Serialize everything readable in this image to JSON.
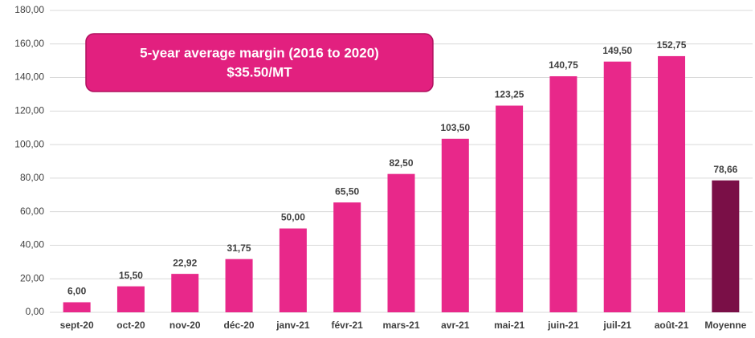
{
  "chart_data": {
    "type": "bar",
    "annotation": [
      "5-year average margin (2016 to 2020)",
      "$35.50/MT"
    ],
    "categories": [
      "sept-20",
      "oct-20",
      "nov-20",
      "déc-20",
      "janv-21",
      "févr-21",
      "mars-21",
      "avr-21",
      "mai-21",
      "juin-21",
      "juil-21",
      "août-21",
      "Moyenne"
    ],
    "values": [
      6.0,
      15.5,
      22.92,
      31.75,
      50.0,
      65.5,
      82.5,
      103.5,
      123.25,
      140.75,
      149.5,
      152.75,
      78.66
    ],
    "value_labels": [
      "6,00",
      "15,50",
      "22,92",
      "31,75",
      "50,00",
      "65,50",
      "82,50",
      "103,50",
      "123,25",
      "140,75",
      "149,50",
      "152,75",
      "78,66"
    ],
    "colors": [
      "#e8288a",
      "#e8288a",
      "#e8288a",
      "#e8288a",
      "#e8288a",
      "#e8288a",
      "#e8288a",
      "#e8288a",
      "#e8288a",
      "#e8288a",
      "#e8288a",
      "#e8288a",
      "#7a0f47"
    ],
    "ylim": [
      0,
      180
    ],
    "yticks": [
      {
        "value": 0,
        "label": "0,00"
      },
      {
        "value": 20,
        "label": "20,00"
      },
      {
        "value": 40,
        "label": "40,00"
      },
      {
        "value": 60,
        "label": "60,00"
      },
      {
        "value": 80,
        "label": "80,00"
      },
      {
        "value": 100,
        "label": "100,00"
      },
      {
        "value": 120,
        "label": "120,00"
      },
      {
        "value": 140,
        "label": "140,00"
      },
      {
        "value": 160,
        "label": "160,00"
      },
      {
        "value": 180,
        "label": "180,00"
      }
    ],
    "grid": true
  }
}
